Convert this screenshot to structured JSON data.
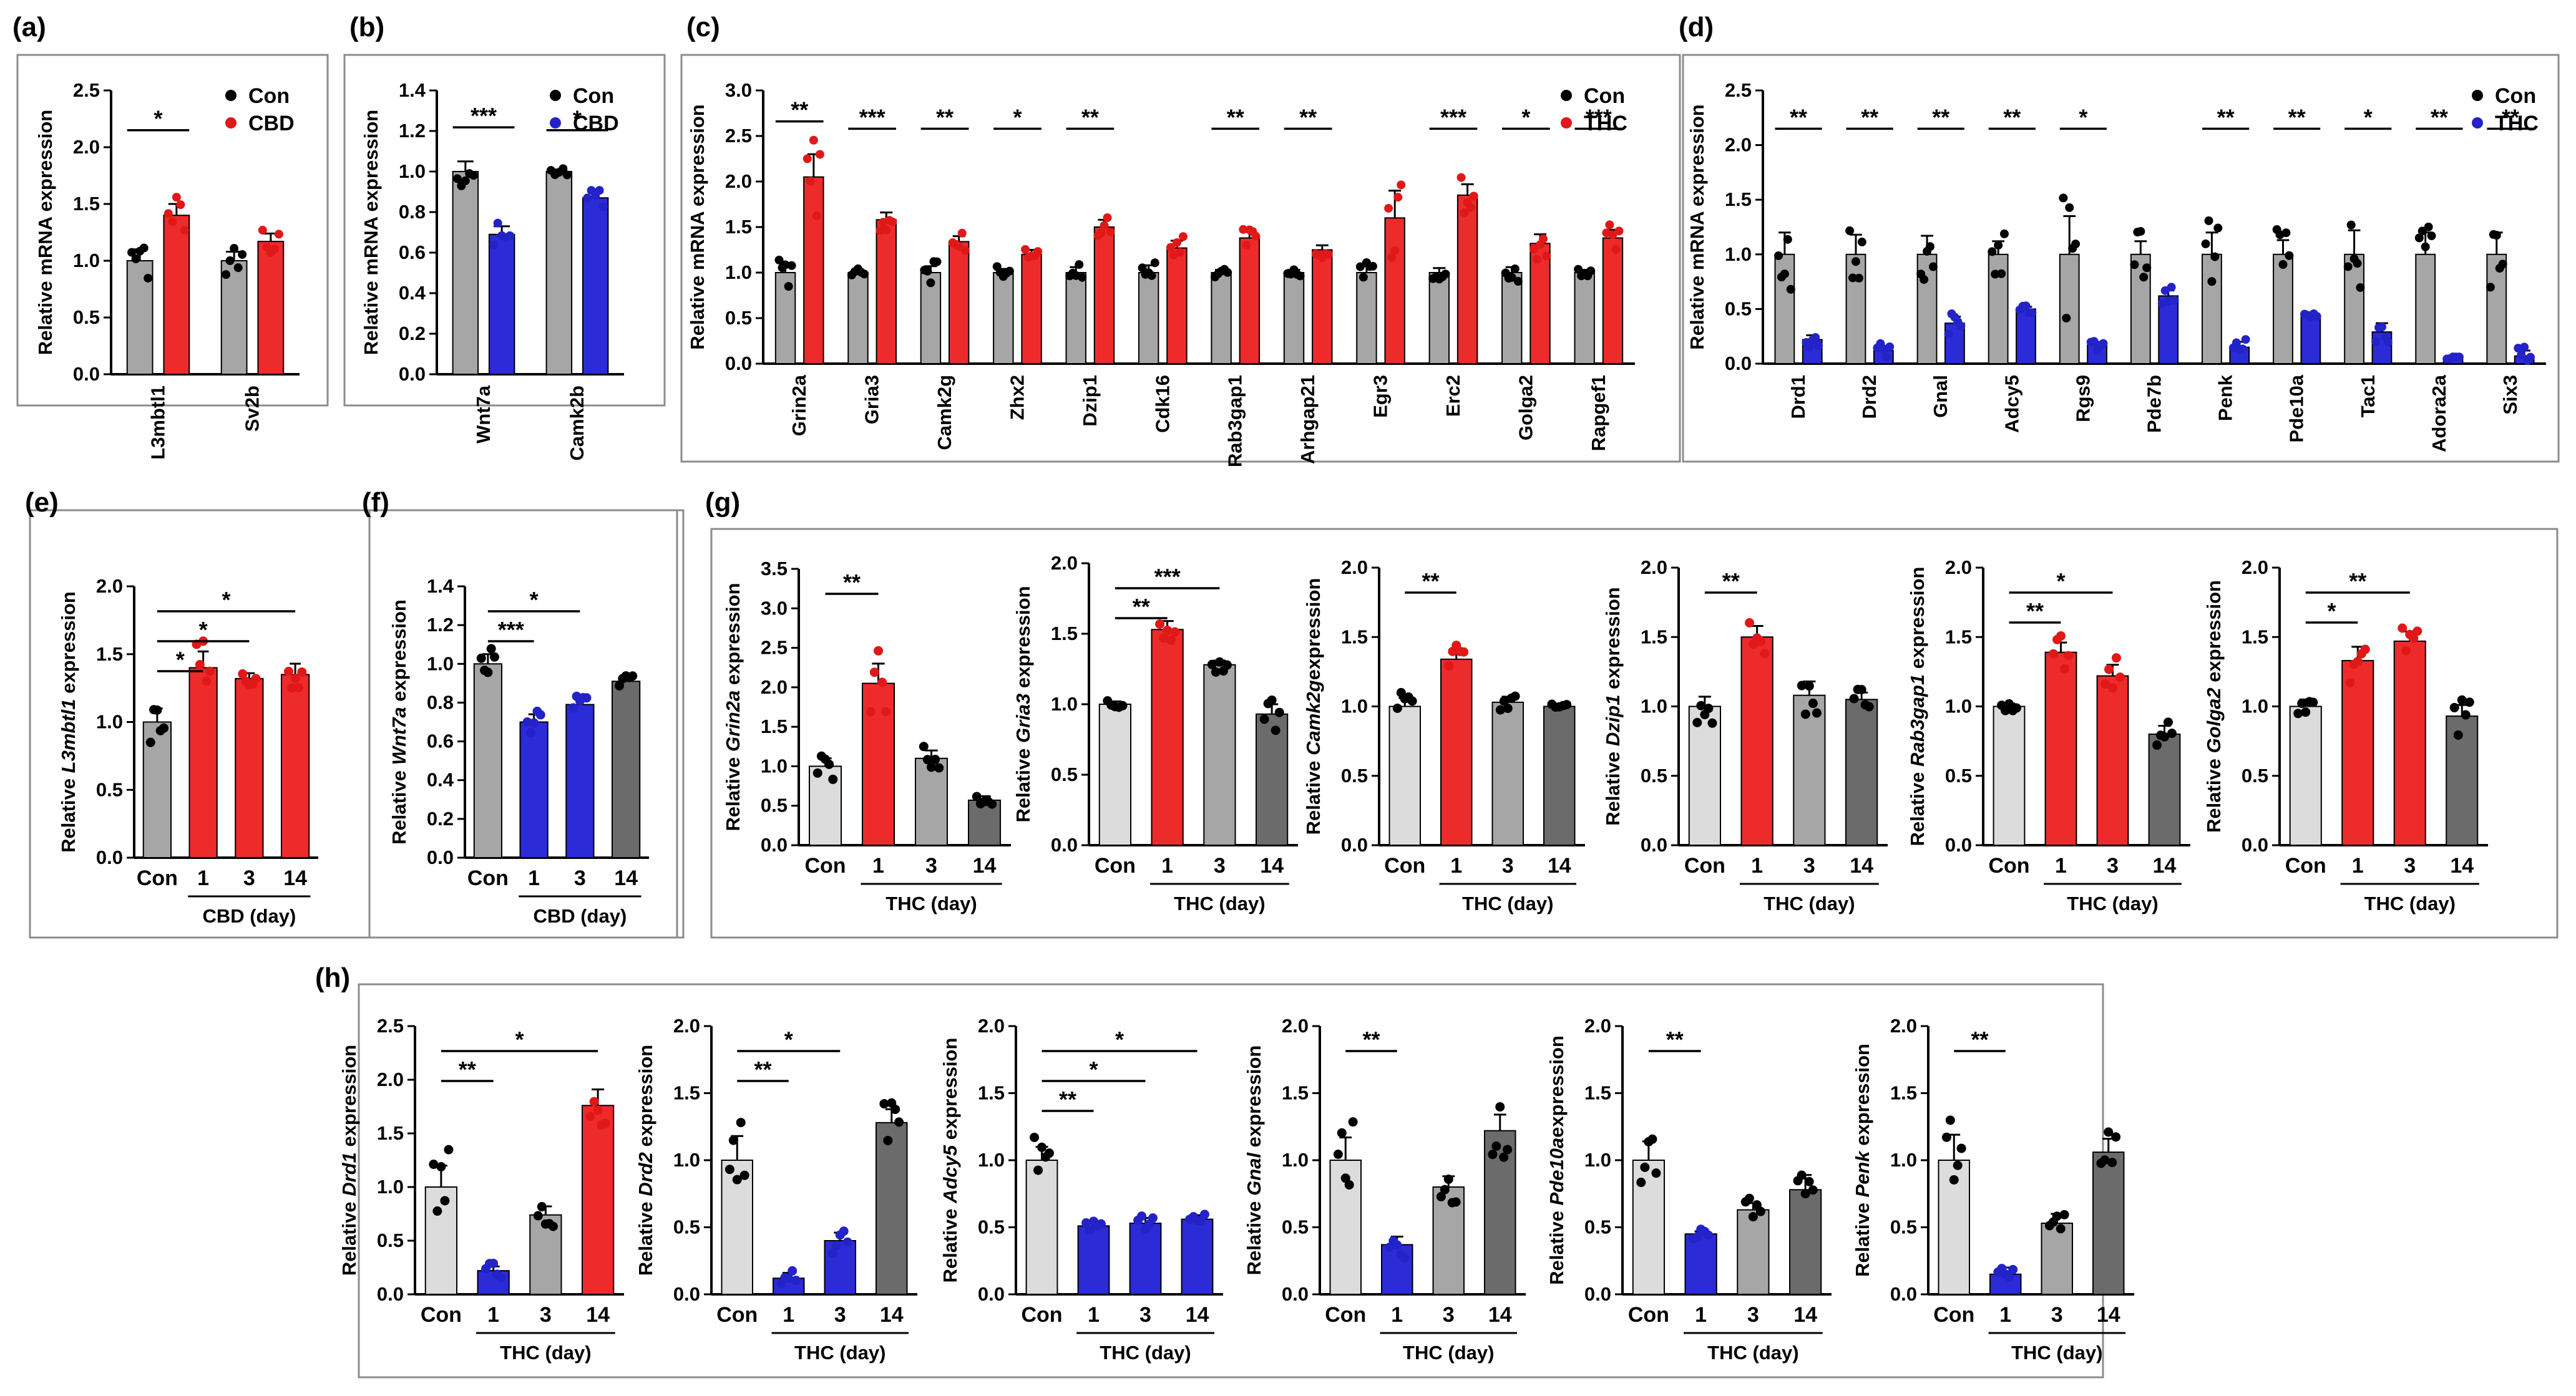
{
  "colors": {
    "con": "#a6a6a6",
    "con_light": "#dcdcdc",
    "con_dark": "#6b6b6b",
    "cbd": "#2b2bd8",
    "thc": "#ee2b2b",
    "point_con": "#000000",
    "point_cbd": "#2323c8",
    "point_thc": "#e01818"
  },
  "chart_data": [
    {
      "id": "a",
      "panel_label": "(a)",
      "type": "bar",
      "layout": "grouped",
      "ylabel": "Relative mRNA expression",
      "ylim": [
        0,
        2.5
      ],
      "yticks": [
        "0.0",
        "0.5",
        "1.0",
        "1.5",
        "2.0",
        "2.5"
      ],
      "categories": [
        "L3mbtl1",
        "Sv2b"
      ],
      "legend": [
        "Con",
        "CBD"
      ],
      "series": [
        {
          "name": "Con",
          "values": [
            1.0,
            1.0
          ],
          "sem": [
            0.1,
            0.08
          ]
        },
        {
          "name": "CBD",
          "values": [
            1.4,
            1.17
          ],
          "sem": [
            0.1,
            0.07
          ]
        }
      ],
      "significance": [
        "*",
        ""
      ]
    },
    {
      "id": "b",
      "panel_label": "(b)",
      "type": "bar",
      "layout": "grouped",
      "ylabel": "Relative mRNA expression",
      "ylim": [
        0,
        1.4
      ],
      "yticks": [
        "0.0",
        "0.2",
        "0.4",
        "0.6",
        "0.8",
        "1.0",
        "1.2",
        "1.4"
      ],
      "categories": [
        "Wnt7a",
        "Camk2b"
      ],
      "legend": [
        "Con",
        "CBD"
      ],
      "series": [
        {
          "name": "Con",
          "values": [
            1.0,
            1.0
          ],
          "sem": [
            0.05,
            0.01
          ]
        },
        {
          "name": "CBD",
          "values": [
            0.69,
            0.87
          ],
          "sem": [
            0.04,
            0.03
          ]
        }
      ],
      "significance": [
        "***",
        "*"
      ]
    },
    {
      "id": "c",
      "panel_label": "(c)",
      "type": "bar",
      "layout": "grouped",
      "ylabel": "Relative mRNA expression",
      "ylim": [
        0,
        3.0
      ],
      "yticks": [
        "0.0",
        "0.5",
        "1.0",
        "1.5",
        "2.0",
        "2.5",
        "3.0"
      ],
      "categories": [
        "Grin2a",
        "Gria3",
        "Camk2g",
        "Zhx2",
        "Dzip1",
        "Cdk16",
        "Rab3gap1",
        "Arhgap21",
        "Egr3",
        "Erc2",
        "Golga2",
        "Rapgef1"
      ],
      "legend": [
        "Con",
        "THC"
      ],
      "series": [
        {
          "name": "Con",
          "values": [
            1.0,
            1.0,
            1.0,
            1.0,
            1.0,
            1.0,
            1.0,
            1.0,
            1.0,
            1.0,
            1.0,
            1.0
          ],
          "sem": [
            0.1,
            0.03,
            0.07,
            0.04,
            0.06,
            0.08,
            0.03,
            0.03,
            0.07,
            0.05,
            0.06,
            0.03
          ]
        },
        {
          "name": "THC",
          "values": [
            2.05,
            1.58,
            1.34,
            1.2,
            1.5,
            1.27,
            1.38,
            1.25,
            1.6,
            1.85,
            1.32,
            1.38
          ],
          "sem": [
            0.25,
            0.08,
            0.06,
            0.05,
            0.08,
            0.08,
            0.07,
            0.05,
            0.3,
            0.12,
            0.1,
            0.09
          ]
        }
      ],
      "significance": [
        "**",
        "***",
        "**",
        "*",
        "**",
        "",
        "**",
        "**",
        "",
        "***",
        "*",
        "***"
      ]
    },
    {
      "id": "d",
      "panel_label": "(d)",
      "type": "bar",
      "layout": "grouped",
      "ylabel": "Relative mRNA expression",
      "ylim": [
        0,
        2.5
      ],
      "yticks": [
        "0.0",
        "0.5",
        "1.0",
        "1.5",
        "2.0",
        "2.5"
      ],
      "categories": [
        "Drd1",
        "Drd2",
        "Gnal",
        "Adcy5",
        "Rgs9",
        "Pde7b",
        "Penk",
        "Pde10a",
        "Tac1",
        "Adora2a",
        "Six3"
      ],
      "legend": [
        "Con",
        "THC"
      ],
      "series": [
        {
          "name": "Con",
          "values": [
            1.0,
            1.0,
            1.0,
            1.0,
            1.0,
            1.0,
            1.0,
            1.0,
            1.0,
            1.0,
            1.0
          ],
          "sem": [
            0.2,
            0.18,
            0.17,
            0.12,
            0.35,
            0.12,
            0.2,
            0.13,
            0.22,
            0.2,
            0.2
          ]
        },
        {
          "name": "THC",
          "values": [
            0.22,
            0.12,
            0.37,
            0.5,
            0.17,
            0.62,
            0.15,
            0.43,
            0.29,
            0.04,
            0.07
          ],
          "sem": [
            0.04,
            0.04,
            0.06,
            0.02,
            0.03,
            0.05,
            0.05,
            0.02,
            0.08,
            0.02,
            0.05
          ]
        }
      ],
      "significance": [
        "**",
        "**",
        "**",
        "**",
        "*",
        "",
        "**",
        "**",
        "*",
        "**",
        "**"
      ]
    },
    {
      "id": "e",
      "panel_label": "(e)",
      "type": "bar",
      "layout": "timecourse",
      "ylabel": "Relative L3mbtl1 expression",
      "ylabel_pre": "Relative ",
      "ylabel_gene": "L3mbtl1",
      "ylabel_post": " expression",
      "ylim": [
        0,
        2.0
      ],
      "yticks": [
        "0.0",
        "0.5",
        "1.0",
        "1.5",
        "2.0"
      ],
      "categories": [
        "Con",
        "1",
        "3",
        "14"
      ],
      "group_label": "CBD (day)",
      "values": [
        1.0,
        1.4,
        1.32,
        1.35
      ],
      "sem": [
        0.1,
        0.12,
        0.04,
        0.08
      ],
      "bar_colors": [
        "con",
        "cbd_red",
        "cbd_red",
        "cbd_red"
      ],
      "significance": [
        {
          "from": 0,
          "to": 1,
          "label": "*"
        },
        {
          "from": 0,
          "to": 2,
          "label": "*"
        },
        {
          "from": 0,
          "to": 3,
          "label": "*"
        }
      ]
    },
    {
      "id": "f",
      "panel_label": "(f)",
      "type": "bar",
      "layout": "timecourse",
      "ylabel": "Relative Wnt7a expression",
      "ylabel_pre": "Relative ",
      "ylabel_gene": "Wnt7a",
      "ylabel_post": " expression",
      "ylim": [
        0,
        1.4
      ],
      "yticks": [
        "0.0",
        "0.2",
        "0.4",
        "0.6",
        "0.8",
        "1.0",
        "1.2",
        "1.4"
      ],
      "categories": [
        "Con",
        "1",
        "3",
        "14"
      ],
      "group_label": "CBD (day)",
      "values": [
        1.0,
        0.7,
        0.79,
        0.91
      ],
      "sem": [
        0.05,
        0.04,
        0.03,
        0.02
      ],
      "bar_colors": [
        "con",
        "cbd",
        "cbd",
        "con_dark"
      ],
      "significance": [
        {
          "from": 0,
          "to": 1,
          "label": "***"
        },
        {
          "from": 0,
          "to": 2,
          "label": "*"
        }
      ]
    },
    {
      "id": "g1",
      "panel_label": "(g)",
      "type": "bar",
      "layout": "timecourse",
      "ylabel": "Relative Grin2a expression",
      "ylabel_pre": "Relative ",
      "ylabel_gene": "Grin2a",
      "ylabel_post": " expression",
      "ylim": [
        0,
        3.5
      ],
      "yticks": [
        "0.0",
        "0.5",
        "1.0",
        "1.5",
        "2.0",
        "2.5",
        "3.0",
        "3.5"
      ],
      "categories": [
        "Con",
        "1",
        "3",
        "14"
      ],
      "group_label": "THC (day)",
      "values": [
        1.0,
        2.05,
        1.1,
        0.57
      ],
      "sem": [
        0.1,
        0.25,
        0.1,
        0.05
      ],
      "bar_colors": [
        "con_light",
        "thc",
        "con",
        "con_dark"
      ],
      "significance": [
        {
          "from": 0,
          "to": 1,
          "label": "**"
        }
      ]
    },
    {
      "id": "g2",
      "type": "bar",
      "layout": "timecourse",
      "ylabel": "Relative Gria3 expression",
      "ylabel_pre": "Relative ",
      "ylabel_gene": "Gria3",
      "ylabel_post": " expression",
      "ylim": [
        0,
        2.0
      ],
      "yticks": [
        "0.0",
        "0.5",
        "1.0",
        "1.5",
        "2.0"
      ],
      "categories": [
        "Con",
        "1",
        "3",
        "14"
      ],
      "group_label": "THC (day)",
      "values": [
        1.0,
        1.53,
        1.28,
        0.93
      ],
      "sem": [
        0.02,
        0.06,
        0.03,
        0.07
      ],
      "bar_colors": [
        "con_light",
        "thc",
        "con",
        "con_dark"
      ],
      "significance": [
        {
          "from": 0,
          "to": 1,
          "label": "**"
        },
        {
          "from": 0,
          "to": 2,
          "label": "***"
        }
      ]
    },
    {
      "id": "g3",
      "type": "bar",
      "layout": "timecourse",
      "ylabel": "Relative Camk2g expression",
      "ylabel_pre": "Relative ",
      "ylabel_gene": "Camk2g",
      "ylabel_post": "expression",
      "ylim": [
        0,
        2.0
      ],
      "yticks": [
        "0.0",
        "0.5",
        "1.0",
        "1.5",
        "2.0"
      ],
      "categories": [
        "Con",
        "1",
        "3",
        "14"
      ],
      "group_label": "THC (day)",
      "values": [
        1.0,
        1.34,
        1.03,
        1.0
      ],
      "sem": [
        0.06,
        0.06,
        0.04,
        0.01
      ],
      "bar_colors": [
        "con_light",
        "thc",
        "con",
        "con_dark"
      ],
      "significance": [
        {
          "from": 0,
          "to": 1,
          "label": "**"
        }
      ]
    },
    {
      "id": "g4",
      "type": "bar",
      "layout": "timecourse",
      "ylabel": "Relative Dzip1 expression",
      "ylabel_pre": "Relative ",
      "ylabel_gene": "Dzip1",
      "ylabel_post": " expression",
      "ylim": [
        0,
        2.0
      ],
      "yticks": [
        "0.0",
        "0.5",
        "1.0",
        "1.5",
        "2.0"
      ],
      "categories": [
        "Con",
        "1",
        "3",
        "14"
      ],
      "group_label": "THC (day)",
      "values": [
        1.0,
        1.5,
        1.08,
        1.05
      ],
      "sem": [
        0.07,
        0.08,
        0.1,
        0.05
      ],
      "bar_colors": [
        "con_light",
        "thc",
        "con",
        "con_dark"
      ],
      "significance": [
        {
          "from": 0,
          "to": 1,
          "label": "**"
        }
      ]
    },
    {
      "id": "g5",
      "type": "bar",
      "layout": "timecourse",
      "ylabel": "Relative Rab3gap1 expression",
      "ylabel_pre": "Relative ",
      "ylabel_gene": "Rab3gap1",
      "ylabel_post": " expression",
      "ylim": [
        0,
        2.0
      ],
      "yticks": [
        "0.0",
        "0.5",
        "1.0",
        "1.5",
        "2.0"
      ],
      "categories": [
        "Con",
        "1",
        "3",
        "14"
      ],
      "group_label": "THC (day)",
      "values": [
        1.0,
        1.39,
        1.22,
        0.8
      ],
      "sem": [
        0.02,
        0.07,
        0.08,
        0.06
      ],
      "bar_colors": [
        "con_light",
        "thc",
        "thc",
        "con_dark"
      ],
      "significance": [
        {
          "from": 0,
          "to": 1,
          "label": "**"
        },
        {
          "from": 0,
          "to": 2,
          "label": "*"
        }
      ]
    },
    {
      "id": "g6",
      "type": "bar",
      "layout": "timecourse",
      "ylabel": "Relative Golga2 expression",
      "ylabel_pre": "Relative ",
      "ylabel_gene": "Golga2",
      "ylabel_post": " expression",
      "ylim": [
        0,
        2.0
      ],
      "yticks": [
        "0.0",
        "0.5",
        "1.0",
        "1.5",
        "2.0"
      ],
      "categories": [
        "Con",
        "1",
        "3",
        "14"
      ],
      "group_label": "THC (day)",
      "values": [
        1.0,
        1.33,
        1.47,
        0.93
      ],
      "sem": [
        0.05,
        0.1,
        0.07,
        0.08
      ],
      "bar_colors": [
        "con_light",
        "thc",
        "thc",
        "con_dark"
      ],
      "significance": [
        {
          "from": 0,
          "to": 1,
          "label": "*"
        },
        {
          "from": 0,
          "to": 2,
          "label": "**"
        }
      ]
    },
    {
      "id": "h1",
      "panel_label": "(h)",
      "type": "bar",
      "layout": "timecourse",
      "ylabel": "Relative Drd1 expression",
      "ylabel_pre": "Relative ",
      "ylabel_gene": "Drd1",
      "ylabel_post": " expression",
      "ylim": [
        0,
        2.5
      ],
      "yticks": [
        "0.0",
        "0.5",
        "1.0",
        "1.5",
        "2.0",
        "2.5"
      ],
      "categories": [
        "Con",
        "1",
        "3",
        "14"
      ],
      "group_label": "THC (day)",
      "values": [
        1.0,
        0.22,
        0.74,
        1.76
      ],
      "sem": [
        0.2,
        0.04,
        0.08,
        0.15
      ],
      "bar_colors": [
        "con_light",
        "cbd",
        "con",
        "thc"
      ],
      "significance": [
        {
          "from": 0,
          "to": 1,
          "label": "**"
        },
        {
          "from": 0,
          "to": 3,
          "label": "*"
        }
      ]
    },
    {
      "id": "h2",
      "type": "bar",
      "layout": "timecourse",
      "ylabel": "Relative Drd2 expression",
      "ylabel_pre": "Relative ",
      "ylabel_gene": "Drd2",
      "ylabel_post": " expression",
      "ylim": [
        0,
        2.0
      ],
      "yticks": [
        "0.0",
        "0.5",
        "1.0",
        "1.5",
        "2.0"
      ],
      "categories": [
        "Con",
        "1",
        "3",
        "14"
      ],
      "group_label": "THC (day)",
      "values": [
        1.0,
        0.12,
        0.4,
        1.28
      ],
      "sem": [
        0.18,
        0.04,
        0.06,
        0.1
      ],
      "bar_colors": [
        "con_light",
        "cbd",
        "cbd",
        "con_dark"
      ],
      "significance": [
        {
          "from": 0,
          "to": 1,
          "label": "**"
        },
        {
          "from": 0,
          "to": 2,
          "label": "*"
        }
      ]
    },
    {
      "id": "h3",
      "type": "bar",
      "layout": "timecourse",
      "ylabel": "Relative Adcy5 expression",
      "ylabel_pre": "Relative ",
      "ylabel_gene": "Adcy5",
      "ylabel_post": " expression",
      "ylim": [
        0,
        2.0
      ],
      "yticks": [
        "0.0",
        "0.5",
        "1.0",
        "1.5",
        "2.0"
      ],
      "categories": [
        "Con",
        "1",
        "3",
        "14"
      ],
      "group_label": "THC (day)",
      "values": [
        1.0,
        0.51,
        0.53,
        0.56
      ],
      "sem": [
        0.1,
        0.02,
        0.04,
        0.03
      ],
      "bar_colors": [
        "con_light",
        "cbd",
        "cbd",
        "cbd"
      ],
      "significance": [
        {
          "from": 0,
          "to": 1,
          "label": "**"
        },
        {
          "from": 0,
          "to": 2,
          "label": "*"
        },
        {
          "from": 0,
          "to": 3,
          "label": "*"
        }
      ]
    },
    {
      "id": "h4",
      "type": "bar",
      "layout": "timecourse",
      "ylabel": "Relative Gnal expression",
      "ylabel_pre": "Relative ",
      "ylabel_gene": "Gnal",
      "ylabel_post": " expression",
      "ylim": [
        0,
        2.0
      ],
      "yticks": [
        "0.0",
        "0.5",
        "1.0",
        "1.5",
        "2.0"
      ],
      "categories": [
        "Con",
        "1",
        "3",
        "14"
      ],
      "group_label": "THC (day)",
      "values": [
        1.0,
        0.37,
        0.8,
        1.22
      ],
      "sem": [
        0.17,
        0.06,
        0.08,
        0.12
      ],
      "bar_colors": [
        "con_light",
        "cbd",
        "con",
        "con_dark"
      ],
      "significance": [
        {
          "from": 0,
          "to": 1,
          "label": "**"
        }
      ]
    },
    {
      "id": "h5",
      "type": "bar",
      "layout": "timecourse",
      "ylabel": "Relative Pde10a expression",
      "ylabel_pre": "Relative ",
      "ylabel_gene": "Pde10a",
      "ylabel_post": "expression",
      "ylim": [
        0,
        2.0
      ],
      "yticks": [
        "0.0",
        "0.5",
        "1.0",
        "1.5",
        "2.0"
      ],
      "categories": [
        "Con",
        "1",
        "3",
        "14"
      ],
      "group_label": "THC (day)",
      "values": [
        1.0,
        0.45,
        0.63,
        0.78
      ],
      "sem": [
        0.14,
        0.02,
        0.05,
        0.11
      ],
      "bar_colors": [
        "con_light",
        "cbd",
        "con",
        "con_dark"
      ],
      "significance": [
        {
          "from": 0,
          "to": 1,
          "label": "**"
        }
      ]
    },
    {
      "id": "h6",
      "type": "bar",
      "layout": "timecourse",
      "ylabel": "Relative Penk expression",
      "ylabel_pre": "Relative ",
      "ylabel_gene": "Penk",
      "ylabel_post": " expression",
      "ylim": [
        0,
        2.0
      ],
      "yticks": [
        "0.0",
        "0.5",
        "1.0",
        "1.5",
        "2.0"
      ],
      "categories": [
        "Con",
        "1",
        "3",
        "14"
      ],
      "group_label": "THC (day)",
      "values": [
        1.0,
        0.15,
        0.53,
        1.06
      ],
      "sem": [
        0.19,
        0.05,
        0.07,
        0.1
      ],
      "bar_colors": [
        "con_light",
        "cbd",
        "con",
        "con_dark"
      ],
      "significance": [
        {
          "from": 0,
          "to": 1,
          "label": "**"
        }
      ]
    }
  ]
}
